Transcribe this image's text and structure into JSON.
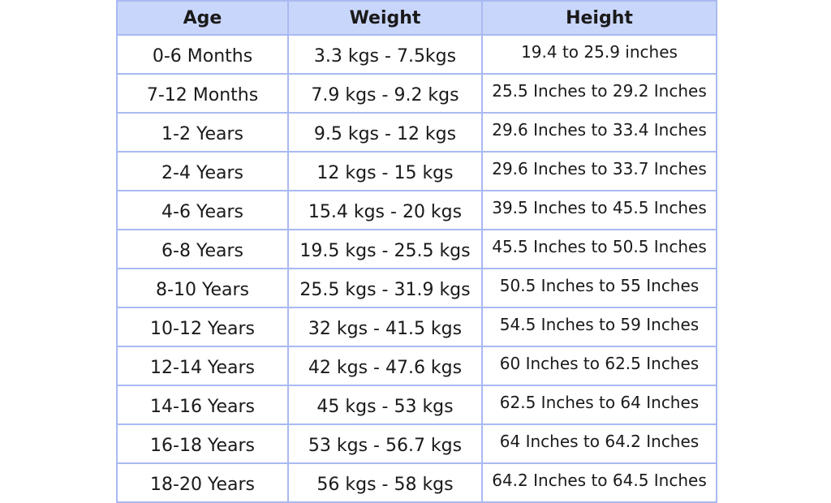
{
  "table": {
    "headers": [
      "Age",
      "Weight",
      "Height"
    ],
    "rows": [
      [
        "0-6 Months",
        "3.3 kgs - 7.5kgs",
        "19.4 to 25.9 inches"
      ],
      [
        "7-12 Months",
        "7.9 kgs - 9.2 kgs",
        "25.5 Inches to 29.2 Inches"
      ],
      [
        "1-2 Years",
        "9.5 kgs - 12 kgs",
        "29.6 Inches to 33.4 Inches"
      ],
      [
        "2-4 Years",
        "12 kgs - 15 kgs",
        "29.6 Inches to 33.7 Inches"
      ],
      [
        "4-6 Years",
        "15.4 kgs - 20 kgs",
        "39.5 Inches to 45.5 Inches"
      ],
      [
        "6-8 Years",
        "19.5 kgs - 25.5 kgs",
        "45.5 Inches to 50.5 Inches"
      ],
      [
        "8-10 Years",
        "25.5 kgs - 31.9 kgs",
        "50.5 Inches to 55 Inches"
      ],
      [
        "10-12 Years",
        "32 kgs - 41.5 kgs",
        "54.5 Inches to 59 Inches"
      ],
      [
        "12-14 Years",
        "42 kgs - 47.6 kgs",
        "60 Inches to 62.5 Inches"
      ],
      [
        "14-16 Years",
        "45 kgs - 53 kgs",
        "62.5 Inches to 64 Inches"
      ],
      [
        "16-18 Years",
        "53 kgs - 56.7 kgs",
        "64 Inches to 64.2 Inches"
      ],
      [
        "18-20 Years",
        "56 kgs - 58 kgs",
        "64.2 Inches to 64.5 Inches"
      ]
    ]
  },
  "colors": {
    "header_bg": "#c9d6fb",
    "border": "#a9b9f2",
    "text": "#1a1a1a"
  }
}
